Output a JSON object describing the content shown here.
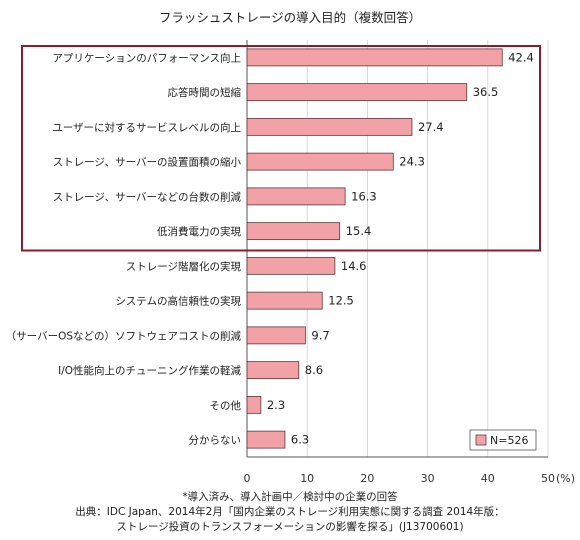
{
  "chart_data": {
    "type": "bar",
    "orientation": "horizontal",
    "title": "フラッシュストレージの導入目的（複数回答）",
    "categories": [
      "アプリケーションのパフォーマンス向上",
      "応答時間の短縮",
      "ユーザーに対するサービスレベルの向上",
      "ストレージ、サーバーの設置面積の縮小",
      "ストレージ、サーバーなどの台数の削減",
      "低消費電力の実現",
      "ストレージ階層化の実現",
      "システムの高信頼性の実現",
      "（サーバーOSなどの）ソフトウェアコストの削減",
      "I/O性能向上のチューニング作業の軽減",
      "その他",
      "分からない"
    ],
    "values": [
      42.4,
      36.5,
      27.4,
      24.3,
      16.3,
      15.4,
      14.6,
      12.5,
      9.7,
      8.6,
      2.3,
      6.3
    ],
    "value_labels": [
      "42.4",
      "36.5",
      "27.4",
      "24.3",
      "16.3",
      "15.4",
      "14.6",
      "12.5",
      "9.7",
      "8.6",
      "2.3",
      "6.3"
    ],
    "xlim": [
      0,
      50
    ],
    "xticks": [
      "0",
      "10",
      "20",
      "30",
      "40",
      "50"
    ],
    "x_unit": "(%)",
    "grid": true,
    "legend": {
      "label": "N=526",
      "placement": "bottom-right"
    },
    "highlight_box_rows": [
      0,
      5
    ],
    "colors": {
      "bar_fill": "#f2a2a6",
      "bar_stroke": "#5a3a3c",
      "highlight": "#8a1c2e",
      "grid": "#cfcfcf",
      "plot_bg": "#ffffff"
    }
  },
  "notes": [
    "*導入済み、導入計画中／検討中の企業の回答",
    "出典：IDC Japan、2014年2月「国内企業のストレージ利用実態に関する調査 2014年版：",
    "ストレージ投資のトランスフォーメーションの影響を探る」(J13700601)"
  ]
}
